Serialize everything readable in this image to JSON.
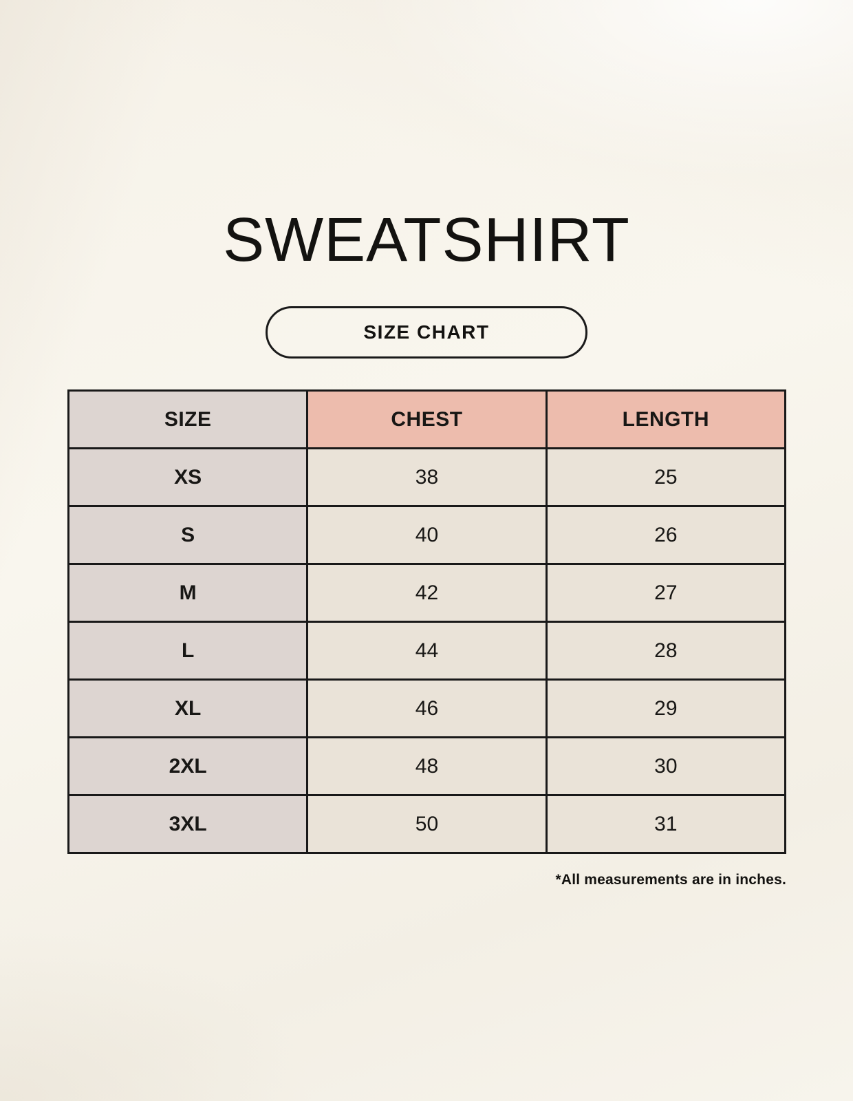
{
  "title": "SWEATSHIRT",
  "badge": {
    "label": "SIZE CHART"
  },
  "table": {
    "headers": [
      "SIZE",
      "CHEST",
      "LENGTH"
    ],
    "rows": [
      {
        "size": "XS",
        "chest": "38",
        "length": "25"
      },
      {
        "size": "S",
        "chest": "40",
        "length": "26"
      },
      {
        "size": "M",
        "chest": "42",
        "length": "27"
      },
      {
        "size": "L",
        "chest": "44",
        "length": "28"
      },
      {
        "size": "XL",
        "chest": "46",
        "length": "29"
      },
      {
        "size": "2XL",
        "chest": "48",
        "length": "30"
      },
      {
        "size": "3XL",
        "chest": "50",
        "length": "31"
      }
    ]
  },
  "footnote": "*All measurements are in inches.",
  "colors": {
    "background": "#f7f4ec",
    "header_accent": "#edbcad",
    "size_column": "#ddd5d1",
    "data_cell": "#eae3d8",
    "border": "#191919",
    "text": "#181715"
  },
  "chart_data": {
    "type": "table",
    "title": "SWEATSHIRT",
    "subtitle": "SIZE CHART",
    "columns": [
      "SIZE",
      "CHEST",
      "LENGTH"
    ],
    "rows": [
      [
        "XS",
        38,
        25
      ],
      [
        "S",
        40,
        26
      ],
      [
        "M",
        42,
        27
      ],
      [
        "L",
        44,
        28
      ],
      [
        "XL",
        46,
        29
      ],
      [
        "2XL",
        48,
        30
      ],
      [
        "3XL",
        50,
        31
      ]
    ],
    "units": "inches",
    "note": "*All measurements are in inches."
  }
}
